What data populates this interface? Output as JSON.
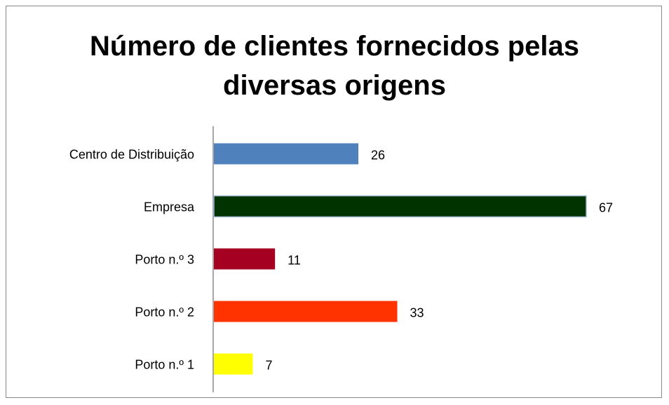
{
  "chart_data": {
    "type": "bar",
    "orientation": "horizontal",
    "title": "Número de clientes fornecidos pelas diversas origens",
    "categories": [
      "Centro de Distribuição",
      "Empresa",
      "Porto n.º 3",
      "Porto n.º 2",
      "Porto n.º 1"
    ],
    "values": [
      26,
      67,
      11,
      33,
      7
    ],
    "colors": [
      "#4f81bd",
      "#003300",
      "#a50021",
      "#ff3300",
      "#ffff00"
    ]
  }
}
